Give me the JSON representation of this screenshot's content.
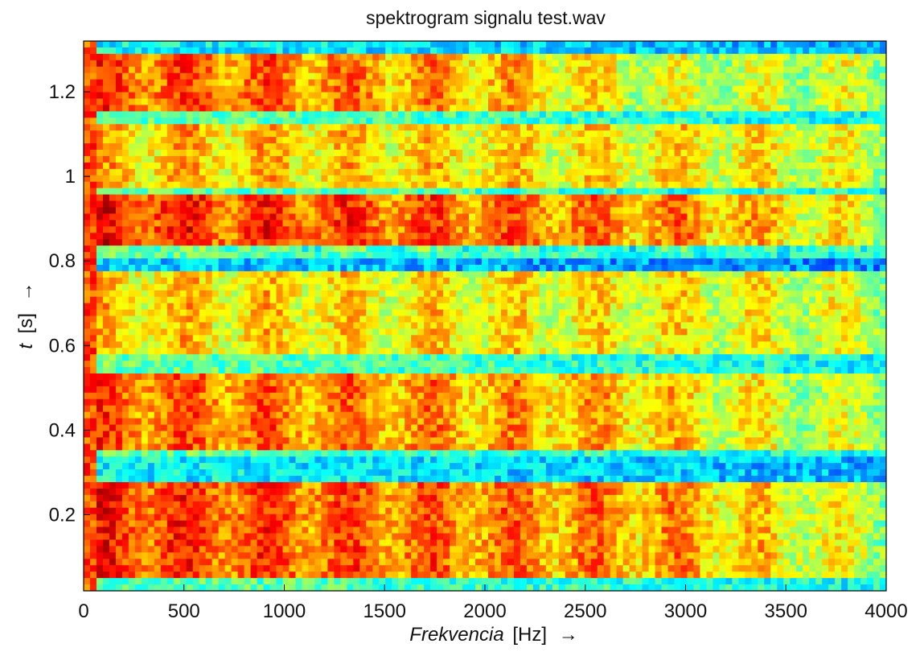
{
  "chart_data": {
    "type": "heatmap",
    "title": "spektrogram signalu test.wav",
    "xlabel": {
      "var": "Frekvencia",
      "unit": "[Hz]",
      "arrow": "→"
    },
    "ylabel": {
      "var": "t",
      "unit": "[s]",
      "arrow": "→"
    },
    "xlim": [
      0,
      4000
    ],
    "ylim": [
      0.02,
      1.32
    ],
    "xticks": [
      0,
      500,
      1000,
      1500,
      2000,
      2500,
      3000,
      3500,
      4000
    ],
    "xtick_labels": [
      "0",
      "500",
      "1000",
      "1500",
      "2000",
      "2500",
      "3000",
      "3500",
      "4000"
    ],
    "yticks": [
      0.2,
      0.4,
      0.6,
      0.8,
      1.0,
      1.2
    ],
    "ytick_labels": [
      "0.2",
      "0.4",
      "0.6",
      "0.8",
      "1",
      "1.2"
    ],
    "colormap": "jet",
    "grid": false,
    "high_energy_time_bands_s": [
      {
        "t0": 0.05,
        "t1": 0.28,
        "level": 0.76,
        "extent_hz": 3000
      },
      {
        "t0": 0.36,
        "t1": 0.53,
        "level": 0.72,
        "extent_hz": 2700
      },
      {
        "t0": 0.58,
        "t1": 0.77,
        "level": 0.6,
        "extent_hz": 3100
      },
      {
        "t0": 0.82,
        "t1": 0.96,
        "level": 0.78,
        "extent_hz": 3100
      },
      {
        "t0": 0.97,
        "t1": 1.13,
        "level": 0.62,
        "extent_hz": 3200
      },
      {
        "t0": 1.15,
        "t1": 1.29,
        "level": 0.74,
        "extent_hz": 2000
      }
    ],
    "low_energy_time_bands_s": [
      {
        "t0": 0.28,
        "t1": 0.33,
        "level": 0.3
      },
      {
        "t0": 0.77,
        "t1": 0.81,
        "level": 0.25
      },
      {
        "t0": 0.82,
        "t1": 0.83,
        "level": 0.4
      },
      {
        "t0": 1.29,
        "t1": 1.32,
        "level": 0.3
      }
    ]
  }
}
